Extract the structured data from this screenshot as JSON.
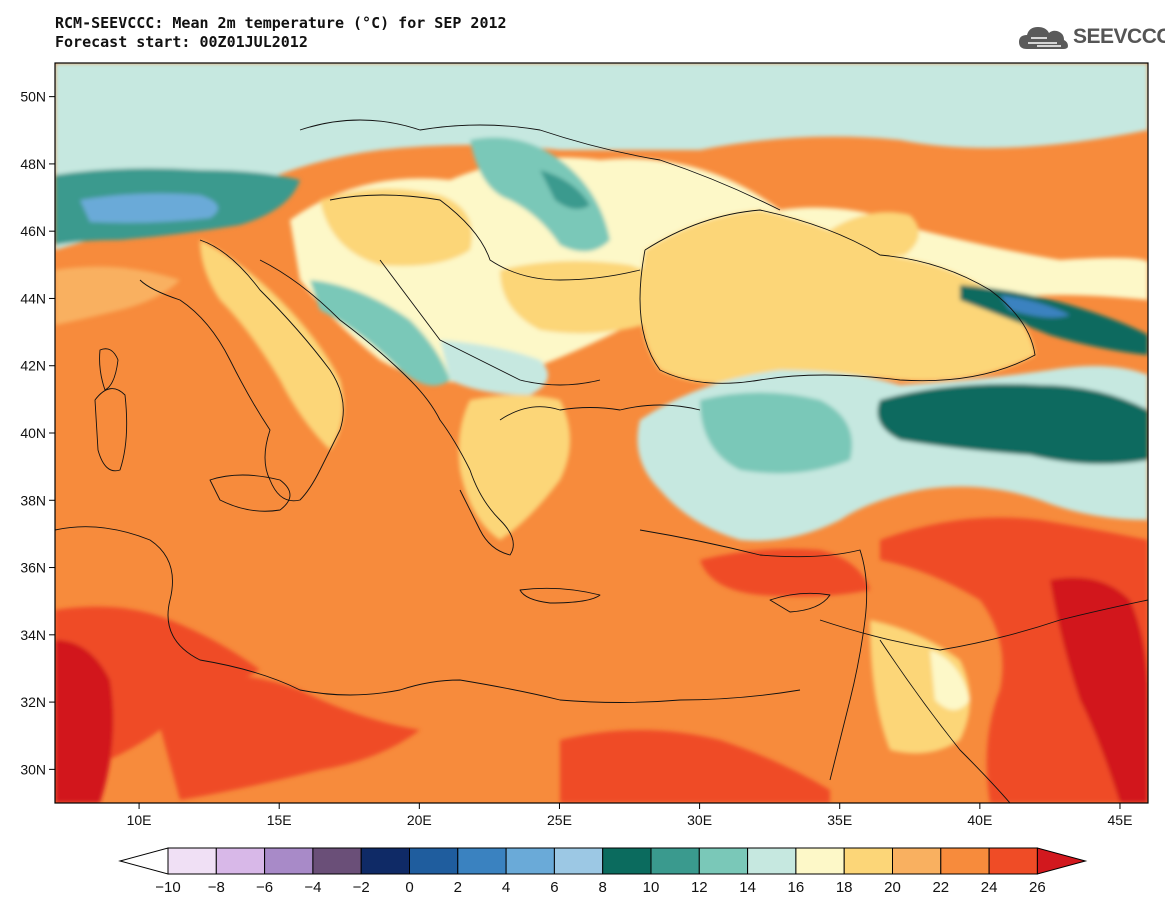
{
  "header": {
    "title": "RCM-SEEVCCC: Mean 2m temperature (°C) for SEP 2012",
    "subtitle": "Forecast start: 00Z01JUL2012"
  },
  "logo": {
    "text": "SEEVCCC",
    "icon": "cloud-logo-icon",
    "color": "#5a5a5a"
  },
  "map": {
    "lon_range": [
      7,
      46
    ],
    "lat_range": [
      29,
      51
    ],
    "lon_ticks": [
      "10E",
      "15E",
      "20E",
      "25E",
      "30E",
      "35E",
      "40E",
      "45E"
    ],
    "lat_ticks": [
      "30N",
      "32N",
      "34N",
      "36N",
      "38N",
      "40N",
      "42N",
      "44N",
      "46N",
      "48N",
      "50N"
    ],
    "variable": "Mean 2m temperature",
    "units": "°C"
  },
  "colorbar": {
    "labels": [
      "-10",
      "-8",
      "-6",
      "-4",
      "-2",
      "0",
      "2",
      "4",
      "6",
      "8",
      "10",
      "12",
      "14",
      "16",
      "18",
      "20",
      "22",
      "24",
      "26"
    ],
    "colors": [
      "#f0e0f5",
      "#d8b8e8",
      "#a88ac8",
      "#6a4f78",
      "#0f2a66",
      "#1f5d9e",
      "#3a82c0",
      "#6aaad8",
      "#9cc8e4",
      "#0b6b5e",
      "#3a9a8e",
      "#7ac8b8",
      "#c6e8e0",
      "#fdf8c8",
      "#fcd678",
      "#f9b060",
      "#f78b3c",
      "#ef4c26"
    ],
    "under_color": "#ffffff",
    "over_color": "#d2181e"
  }
}
